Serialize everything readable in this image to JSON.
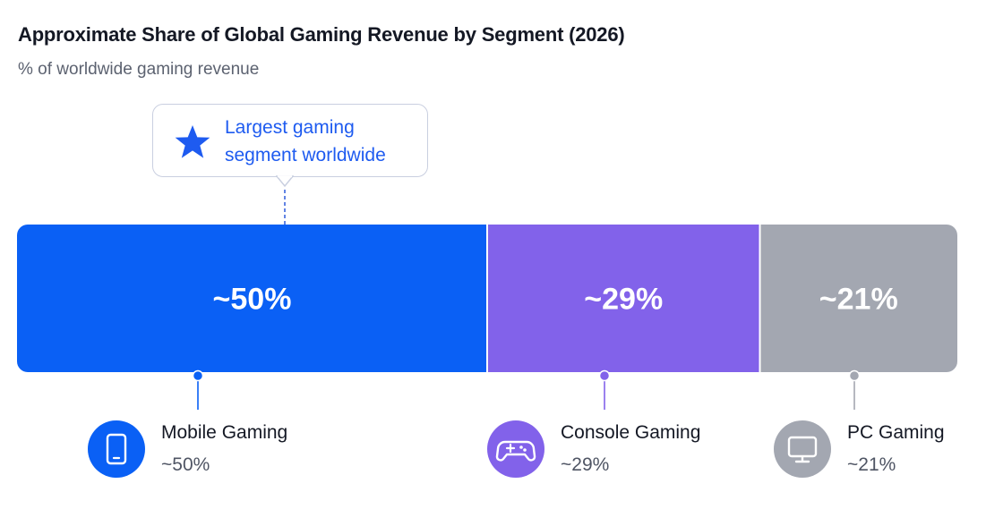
{
  "chart_data": {
    "type": "bar",
    "orientation": "horizontal-stacked-100",
    "title": "Approximate Share of Global Gaming Revenue by Segment (2026)",
    "subtitle": "% of worldwide gaming revenue",
    "xlabel": "",
    "ylabel": "",
    "unit": "%",
    "categories": [
      "Mobile Gaming",
      "Console Gaming",
      "PC Gaming"
    ],
    "values": [
      50,
      29,
      21
    ],
    "display_labels": [
      "~50%",
      "~29%",
      "~21%"
    ],
    "colors": [
      "#0a60f5",
      "#8262ea",
      "#a3a7b1"
    ],
    "icons": [
      "smartphone-icon",
      "gamepad-icon",
      "monitor-icon"
    ],
    "annotation": {
      "text": "Largest gaming\nsegment worldwide",
      "target": "Mobile Gaming",
      "icon": "star-icon",
      "color": "#1e5bf0"
    },
    "legend": [
      {
        "name": "Mobile Gaming",
        "value": "~50%"
      },
      {
        "name": "Console Gaming",
        "value": "~29%"
      },
      {
        "name": "PC Gaming",
        "value": "~21%"
      }
    ],
    "grid": false
  }
}
